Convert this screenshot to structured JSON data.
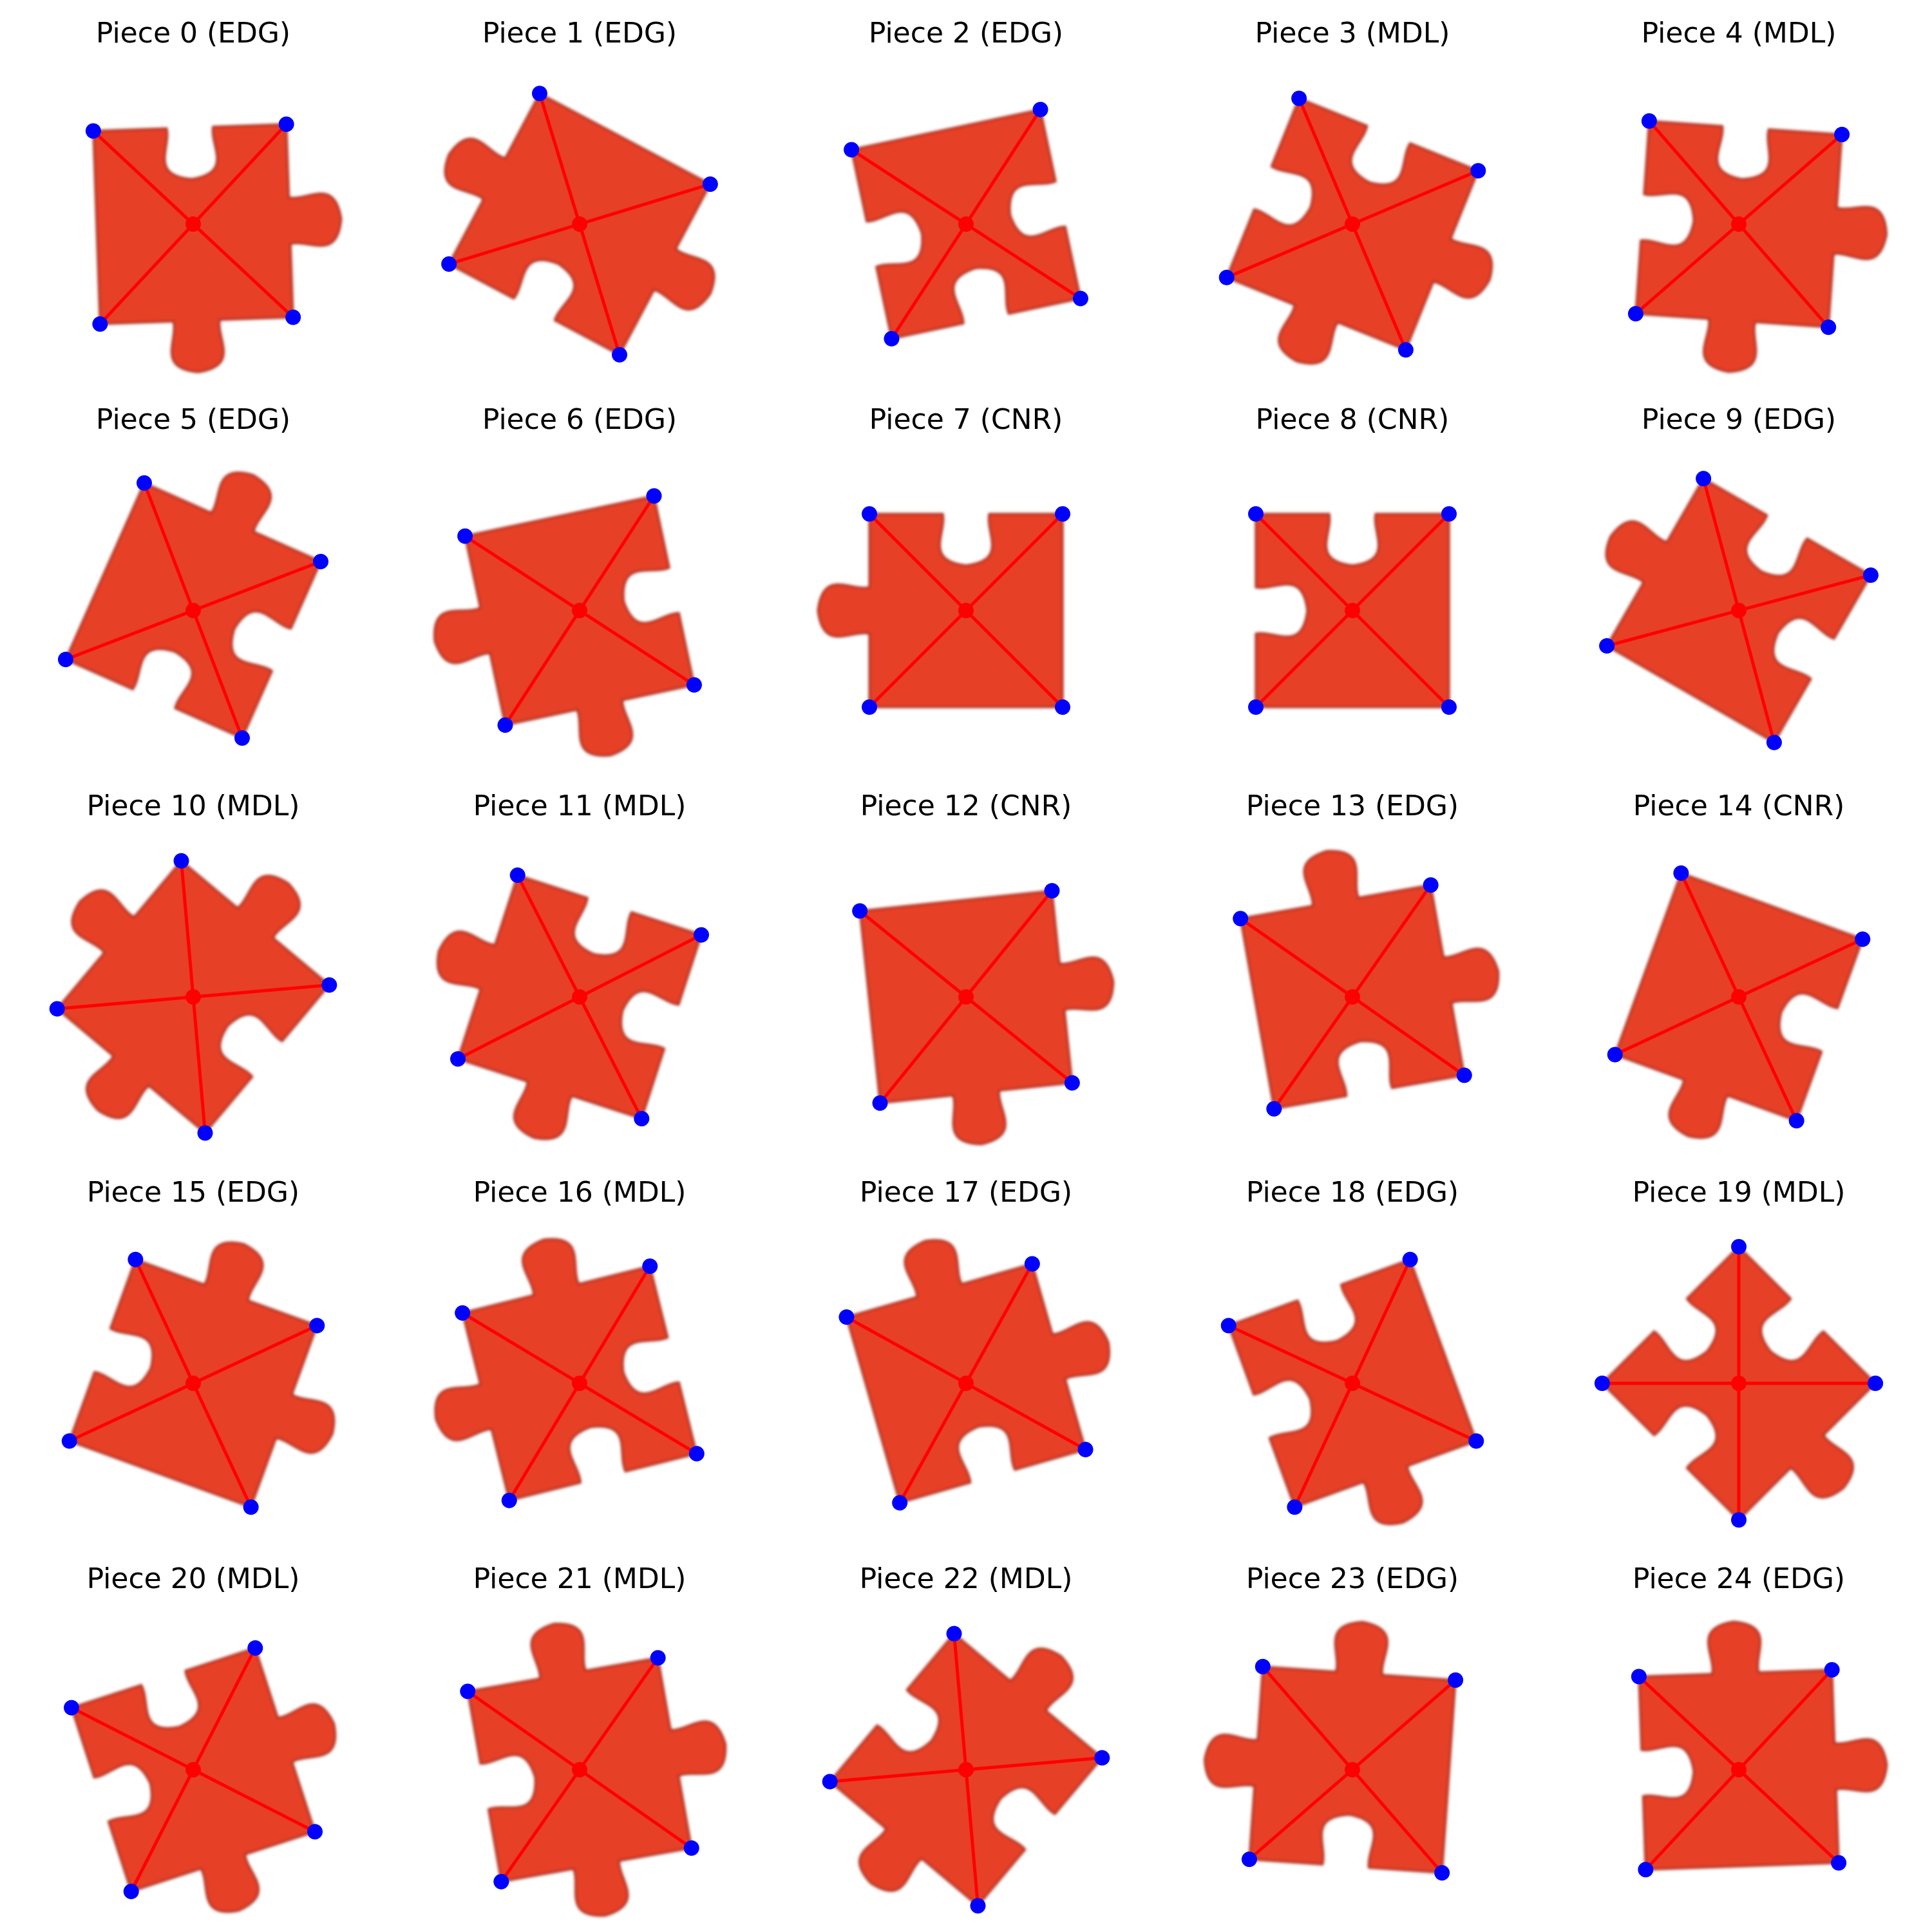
{
  "colors": {
    "piece_fill": "#e63f28",
    "piece_edge": "#a52a1a",
    "diagonal": "#ff0000",
    "corner_marker": "#0000ff",
    "center_marker": "#ff0000"
  },
  "pieces": [
    {
      "title": "Piece 0 (EDG)",
      "id": 0,
      "type": "EDG",
      "rot": -2,
      "tabs": [
        "blank",
        "tab",
        "tab",
        "flat"
      ]
    },
    {
      "title": "Piece 1 (EDG)",
      "id": 1,
      "type": "EDG",
      "rot": 28,
      "tabs": [
        "flat",
        "tab",
        "blank",
        "tab"
      ]
    },
    {
      "title": "Piece 2 (EDG)",
      "id": 2,
      "type": "EDG",
      "rot": -12,
      "tabs": [
        "flat",
        "blank",
        "blank",
        "blank"
      ]
    },
    {
      "title": "Piece 3 (MDL)",
      "id": 3,
      "type": "MDL",
      "rot": 22,
      "tabs": [
        "blank",
        "tab",
        "tab",
        "blank"
      ]
    },
    {
      "title": "Piece 4 (MDL)",
      "id": 4,
      "type": "MDL",
      "rot": 4,
      "tabs": [
        "blank",
        "tab",
        "tab",
        "blank"
      ]
    },
    {
      "title": "Piece 5 (EDG)",
      "id": 5,
      "type": "EDG",
      "rot": 24,
      "tabs": [
        "tab",
        "blank",
        "blank",
        "flat"
      ]
    },
    {
      "title": "Piece 6 (EDG)",
      "id": 6,
      "type": "EDG",
      "rot": -12,
      "tabs": [
        "flat",
        "blank",
        "tab",
        "tab"
      ]
    },
    {
      "title": "Piece 7 (CNR)",
      "id": 7,
      "type": "CNR",
      "rot": 0,
      "tabs": [
        "blank",
        "flat",
        "flat",
        "tab"
      ]
    },
    {
      "title": "Piece 8 (CNR)",
      "id": 8,
      "type": "CNR",
      "rot": 0,
      "tabs": [
        "blank",
        "flat",
        "flat",
        "blank"
      ]
    },
    {
      "title": "Piece 9 (EDG)",
      "id": 9,
      "type": "EDG",
      "rot": 30,
      "tabs": [
        "blank",
        "blank",
        "flat",
        "tab"
      ]
    },
    {
      "title": "Piece 10 (MDL)",
      "id": 10,
      "type": "MDL",
      "rot": 40,
      "tabs": [
        "tab",
        "blank",
        "tab",
        "tab"
      ]
    },
    {
      "title": "Piece 11 (MDL)",
      "id": 11,
      "type": "MDL",
      "rot": 18,
      "tabs": [
        "blank",
        "blank",
        "tab",
        "tab"
      ]
    },
    {
      "title": "Piece 12 (CNR)",
      "id": 12,
      "type": "CNR",
      "rot": -6,
      "tabs": [
        "flat",
        "tab",
        "tab",
        "flat"
      ]
    },
    {
      "title": "Piece 13 (EDG)",
      "id": 13,
      "type": "EDG",
      "rot": -10,
      "tabs": [
        "tab",
        "tab",
        "blank",
        "flat"
      ]
    },
    {
      "title": "Piece 14 (CNR)",
      "id": 14,
      "type": "CNR",
      "rot": 20,
      "tabs": [
        "flat",
        "blank",
        "tab",
        "flat"
      ]
    },
    {
      "title": "Piece 15 (EDG)",
      "id": 15,
      "type": "EDG",
      "rot": 20,
      "tabs": [
        "tab",
        "tab",
        "flat",
        "blank"
      ]
    },
    {
      "title": "Piece 16 (MDL)",
      "id": 16,
      "type": "MDL",
      "rot": -14,
      "tabs": [
        "tab",
        "blank",
        "blank",
        "tab"
      ]
    },
    {
      "title": "Piece 17 (EDG)",
      "id": 17,
      "type": "EDG",
      "rot": -16,
      "tabs": [
        "tab",
        "tab",
        "blank",
        "flat"
      ]
    },
    {
      "title": "Piece 18 (EDG)",
      "id": 18,
      "type": "EDG",
      "rot": -20,
      "tabs": [
        "blank",
        "flat",
        "tab",
        "blank"
      ]
    },
    {
      "title": "Piece 19 (MDL)",
      "id": 19,
      "type": "MDL",
      "rot": 45,
      "tabs": [
        "blank",
        "tab",
        "blank",
        "blank"
      ]
    },
    {
      "title": "Piece 20 (MDL)",
      "id": 20,
      "type": "MDL",
      "rot": -18,
      "tabs": [
        "blank",
        "tab",
        "tab",
        "blank"
      ]
    },
    {
      "title": "Piece 21 (MDL)",
      "id": 21,
      "type": "MDL",
      "rot": -10,
      "tabs": [
        "tab",
        "tab",
        "tab",
        "blank"
      ]
    },
    {
      "title": "Piece 22 (MDL)",
      "id": 22,
      "type": "MDL",
      "rot": 40,
      "tabs": [
        "tab",
        "blank",
        "tab",
        "blank"
      ]
    },
    {
      "title": "Piece 23 (EDG)",
      "id": 23,
      "type": "EDG",
      "rot": 4,
      "tabs": [
        "tab",
        "flat",
        "blank",
        "tab"
      ]
    },
    {
      "title": "Piece 24 (EDG)",
      "id": 24,
      "type": "EDG",
      "rot": -2,
      "tabs": [
        "tab",
        "tab",
        "flat",
        "blank"
      ]
    }
  ]
}
